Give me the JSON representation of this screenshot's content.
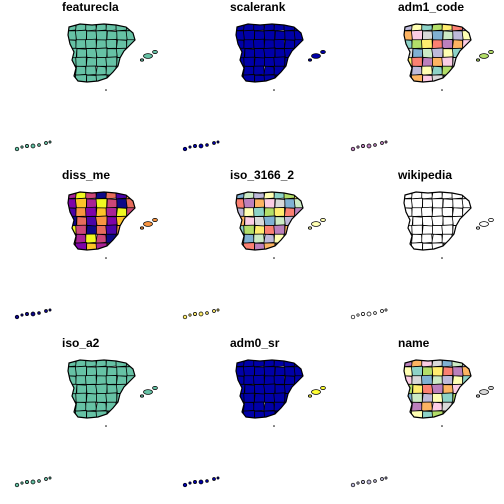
{
  "chart_data": {
    "type": "map-small-multiples",
    "region": "Spain",
    "panels": [
      {
        "title": "featurecla",
        "style": "uniform",
        "fill": "#66c2a5"
      },
      {
        "title": "scalerank",
        "style": "uniform",
        "fill": "#0000a8"
      },
      {
        "title": "adm1_code",
        "style": "categorical",
        "palette": [
          "#8dd3c7",
          "#fdb462",
          "#bebada",
          "#fb8072",
          "#80b1d3",
          "#b3de69",
          "#fccde5",
          "#ffffb3",
          "#bc80bd",
          "#ccebc5",
          "#ffed6f",
          "#d9d9d9"
        ]
      },
      {
        "title": "diss_me",
        "style": "gradient",
        "palette": [
          "#0d0887",
          "#4b03a7",
          "#7e03a8",
          "#a92395",
          "#cc4778",
          "#e66c5c",
          "#f89441",
          "#fdc328",
          "#f0f921"
        ]
      },
      {
        "title": "iso_3166_2",
        "style": "categorical",
        "palette": [
          "#8dd3c7",
          "#fdb462",
          "#bebada",
          "#fb8072",
          "#80b1d3",
          "#b3de69",
          "#fccde5",
          "#ffffb3",
          "#bc80bd",
          "#ccebc5",
          "#ffed6f",
          "#d9d9d9"
        ]
      },
      {
        "title": "wikipedia",
        "style": "uniform",
        "fill": "#ffffff"
      },
      {
        "title": "iso_a2",
        "style": "uniform",
        "fill": "#66c2a5"
      },
      {
        "title": "adm0_sr",
        "style": "twoclass",
        "fill": "#0000a8",
        "accent": "#ffff33"
      },
      {
        "title": "name",
        "style": "categorical",
        "palette": [
          "#8dd3c7",
          "#fdb462",
          "#bebada",
          "#fb8072",
          "#80b1d3",
          "#b3de69",
          "#fccde5",
          "#ffffb3",
          "#bc80bd",
          "#ccebc5",
          "#ffed6f",
          "#d9d9d9"
        ]
      }
    ]
  }
}
